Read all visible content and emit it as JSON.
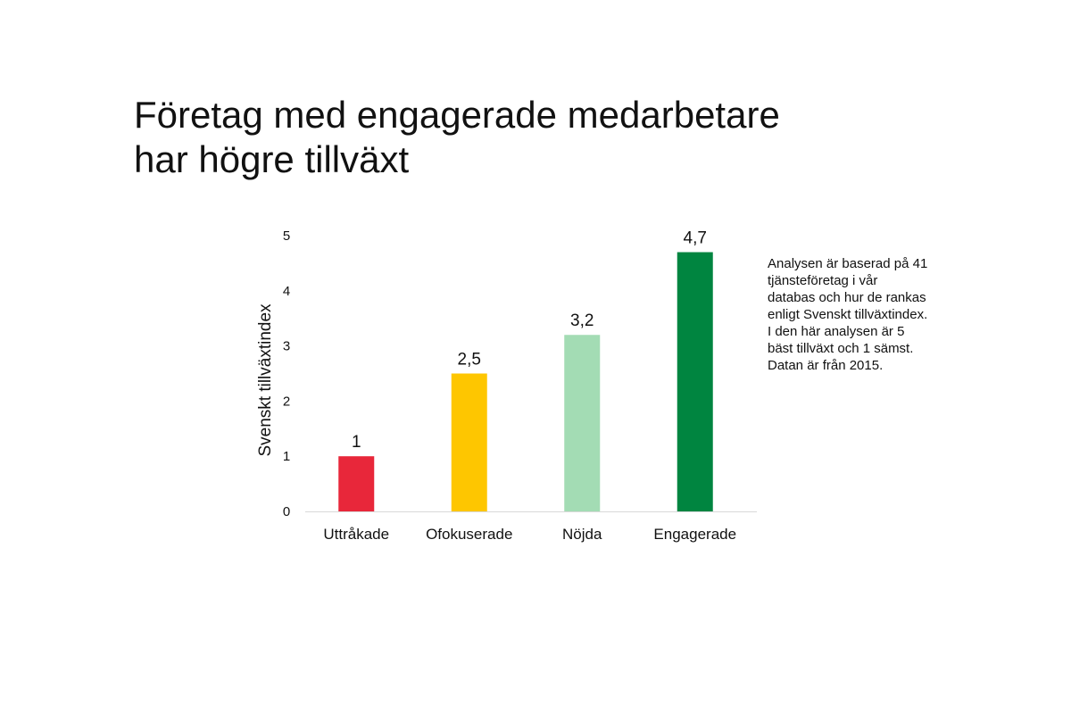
{
  "title_lines": [
    "Företag med engagerade medarbetare",
    "har högre tillväxt"
  ],
  "note": "Analysen är baserad på 41 tjänsteföretag i vår databas och hur de rankas enligt Svenskt tillväxtindex. I den här analysen är 5 bäst tillväxt och 1 sämst. Datan är från 2015.",
  "chart_data": {
    "type": "bar",
    "title": "Företag med engagerade medarbetare har högre tillväxt",
    "xlabel": "",
    "ylabel": "Svenskt tillväxtindex",
    "ylim": [
      0,
      5
    ],
    "yticks": [
      "0",
      "1",
      "2",
      "3",
      "4",
      "5"
    ],
    "categories": [
      "Uttråkade",
      "Ofokuserade",
      "Nöjda",
      "Engagerade"
    ],
    "values": [
      1,
      2.5,
      3.2,
      4.7
    ],
    "value_labels": [
      "1",
      "2,5",
      "3,2",
      "4,7"
    ],
    "colors": [
      "#e8273a",
      "#fec600",
      "#a3dcb4",
      "#008540"
    ],
    "grid": false,
    "legend": "none"
  }
}
